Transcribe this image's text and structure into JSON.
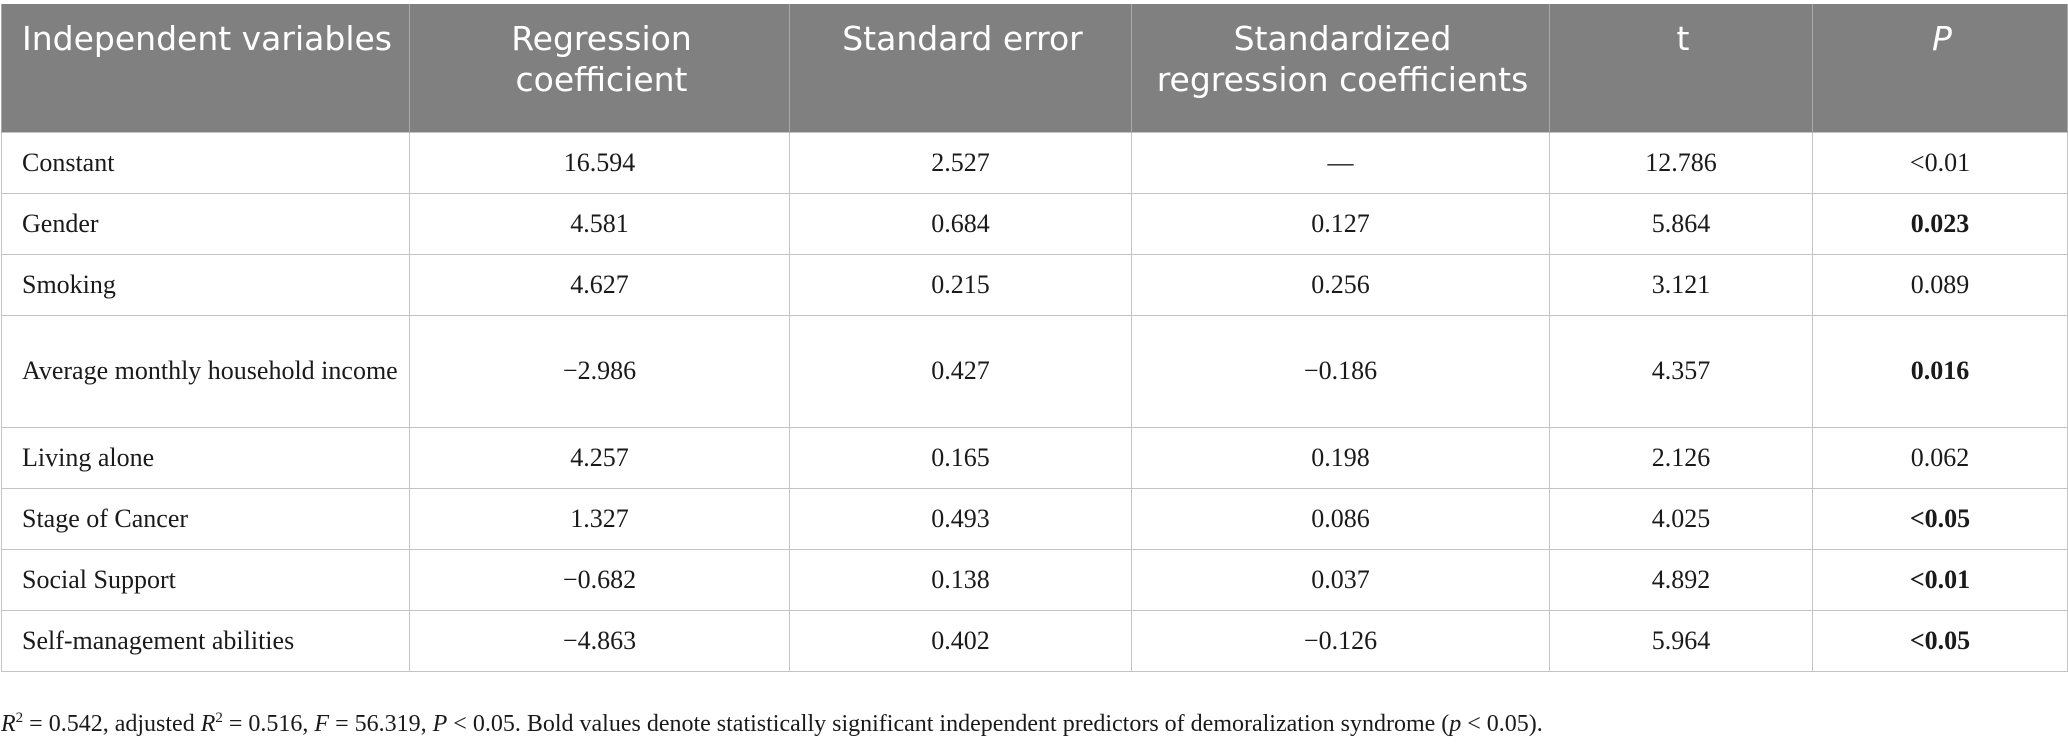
{
  "table": {
    "headers": [
      {
        "label": "Independent variables",
        "italic": false
      },
      {
        "label": "Regression coefficient",
        "italic": false
      },
      {
        "label": "Standard error",
        "italic": false
      },
      {
        "label": "Standardized regression coefficients",
        "italic": false
      },
      {
        "label": "t",
        "italic": false
      },
      {
        "label": "P",
        "italic": true
      }
    ],
    "rows": [
      {
        "variable": "Constant",
        "coef": "16.594",
        "se": "2.527",
        "std_coef": "—",
        "t": "12.786",
        "p": "<0.01",
        "p_bold": false
      },
      {
        "variable": "Gender",
        "coef": "4.581",
        "se": "0.684",
        "std_coef": "0.127",
        "t": "5.864",
        "p": "0.023",
        "p_bold": true
      },
      {
        "variable": "Smoking",
        "coef": "4.627",
        "se": "0.215",
        "std_coef": "0.256",
        "t": "3.121",
        "p": "0.089",
        "p_bold": false
      },
      {
        "variable": "Average monthly household income",
        "coef": "−2.986",
        "se": "0.427",
        "std_coef": "−0.186",
        "t": "4.357",
        "p": "0.016",
        "p_bold": true
      },
      {
        "variable": "Living alone",
        "coef": "4.257",
        "se": "0.165",
        "std_coef": "0.198",
        "t": "2.126",
        "p": "0.062",
        "p_bold": false
      },
      {
        "variable": "Stage of Cancer",
        "coef": "1.327",
        "se": "0.493",
        "std_coef": "0.086",
        "t": "4.025",
        "p": "<0.05",
        "p_bold": true
      },
      {
        "variable": "Social Support",
        "coef": "−0.682",
        "se": "0.138",
        "std_coef": "0.037",
        "t": "4.892",
        "p": "<0.01",
        "p_bold": true
      },
      {
        "variable": "Self-management abilities",
        "coef": "−4.863",
        "se": "0.402",
        "std_coef": "−0.126",
        "t": "5.964",
        "p": "<0.05",
        "p_bold": true
      }
    ]
  },
  "footnote": {
    "r2_label": "R",
    "r2_sup": "2",
    "r2_value": " = 0.542, adjusted ",
    "adj_r2_label": "R",
    "adj_r2_sup": "2",
    "adj_r2_value": " = 0.516, ",
    "f_label": "F",
    "f_value": " = 56.319, ",
    "p_label": "P",
    "p_value": " < 0.05. Bold values denote statistically significant independent predictors of demoralization syndrome (",
    "p2_label": "p",
    "p2_value": " < 0.05)."
  },
  "colors": {
    "header_bg": "#7f807f",
    "header_text": "#ffffff",
    "grid": "#c4c4c4"
  }
}
